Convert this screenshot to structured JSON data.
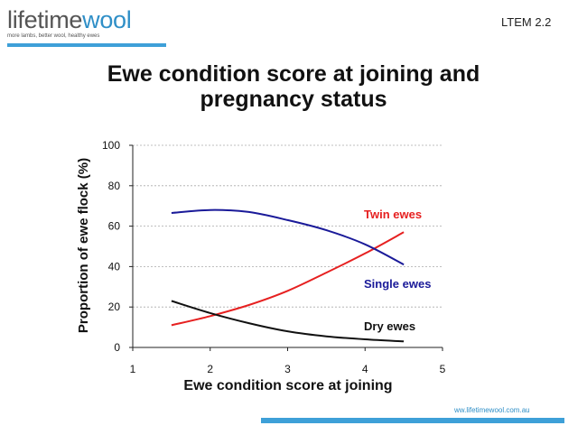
{
  "header": {
    "logo_primary": "lifetime",
    "logo_accent": "wool",
    "logo_tagline": "more lambs, better wool, healthy ewes",
    "code": "LTEM 2.2"
  },
  "footer": {
    "url": "ww.lifetimewool.com.au"
  },
  "colors": {
    "brand": "#2f8fc7",
    "twin": "#e62020",
    "single": "#1a1a99",
    "dry": "#111111"
  },
  "chart_data": {
    "type": "line",
    "title": "Ewe condition score at joining and pregnancy status",
    "xlabel": "Ewe condition score at joining",
    "ylabel": "Proportion of ewe flock (%)",
    "xlim": [
      1,
      5
    ],
    "ylim": [
      0,
      100
    ],
    "xticks": [
      1,
      2,
      3,
      4,
      5
    ],
    "yticks": [
      0,
      20,
      40,
      60,
      80,
      100
    ],
    "grid": "horizontal dashed",
    "series": [
      {
        "name": "Twin ewes",
        "color": "#e62020",
        "x": [
          1.5,
          2.0,
          2.5,
          3.0,
          3.5,
          4.0,
          4.5
        ],
        "values": [
          11,
          15.5,
          21,
          28,
          37,
          46.5,
          57
        ]
      },
      {
        "name": "Single ewes",
        "color": "#1a1a99",
        "x": [
          1.5,
          2.0,
          2.5,
          3.0,
          3.5,
          4.0,
          4.5
        ],
        "values": [
          66.5,
          68,
          67,
          63,
          58,
          51,
          41
        ]
      },
      {
        "name": "Dry ewes",
        "color": "#111111",
        "x": [
          1.5,
          2.0,
          2.5,
          3.0,
          3.5,
          4.0,
          4.5
        ],
        "values": [
          23,
          17,
          12,
          8,
          5.5,
          4,
          3
        ]
      }
    ]
  }
}
